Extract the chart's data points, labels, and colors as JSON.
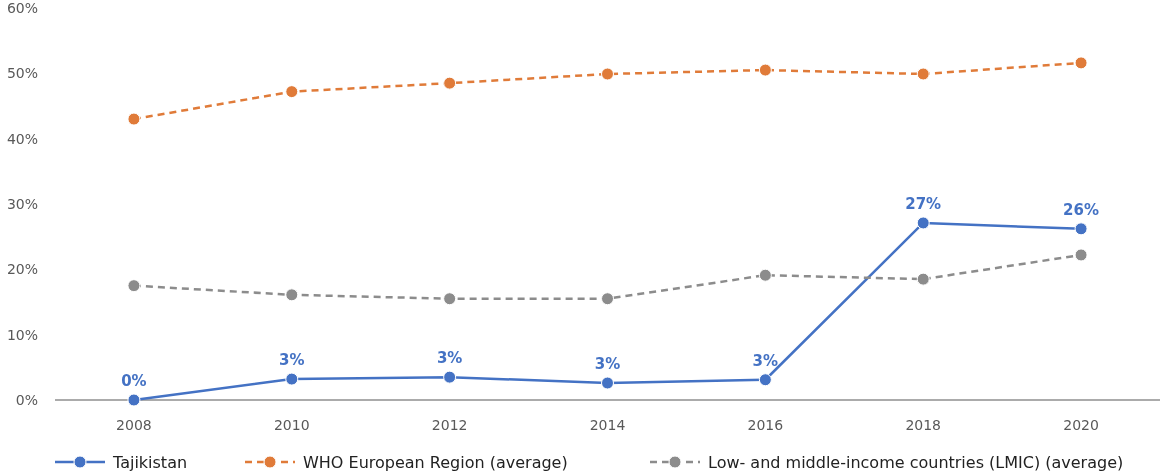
{
  "chart_data": {
    "type": "line",
    "categories": [
      "2008",
      "2010",
      "2012",
      "2014",
      "2016",
      "2018",
      "2020"
    ],
    "ylim": [
      0,
      60
    ],
    "yticks": [
      {
        "value": 0,
        "label": "0%"
      },
      {
        "value": 10,
        "label": "10%"
      },
      {
        "value": 20,
        "label": "20%"
      },
      {
        "value": 30,
        "label": "30%"
      },
      {
        "value": 40,
        "label": "40%"
      },
      {
        "value": 50,
        "label": "50%"
      },
      {
        "value": 60,
        "label": "60%"
      }
    ],
    "marker": "circle",
    "legend": "bottom",
    "series": [
      {
        "name": "Tajikistan",
        "color": "#4472c4",
        "line_style": "solid",
        "values": [
          0,
          3.2,
          3.5,
          2.6,
          3.1,
          27.1,
          26.2
        ],
        "value_labels": [
          "0%",
          "3%",
          "3%",
          "3%",
          "3%",
          "27%",
          "26%"
        ]
      },
      {
        "name": "WHO European Region (average)",
        "color": "#e07b39",
        "line_style": "dashed",
        "values": [
          43.0,
          47.2,
          48.5,
          49.9,
          50.5,
          49.9,
          51.6
        ]
      },
      {
        "name": "Low- and middle-income countries (LMIC) (average)",
        "color": "#8c8c8c",
        "line_style": "dashed",
        "values": [
          17.5,
          16.1,
          15.5,
          15.5,
          19.1,
          18.5,
          22.2
        ]
      }
    ]
  }
}
